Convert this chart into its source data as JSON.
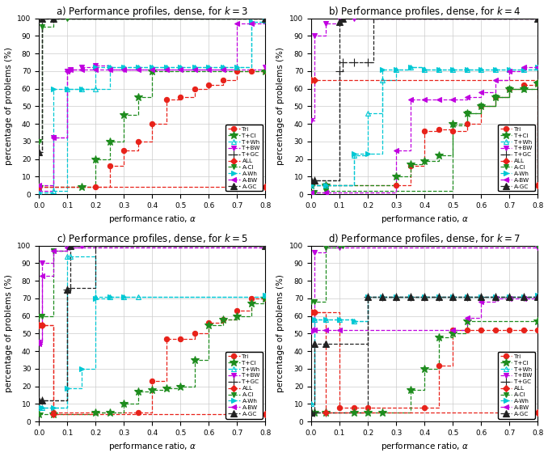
{
  "titles": [
    "a) Performance profiles, dense, for $k = 3$",
    "b) Performance profiles, dense, for $k = 4$",
    "c) Performance profiles, dense, for $k = 5$",
    "d) Performance profiles, dense, for $k = 7$"
  ],
  "panels": [
    "a",
    "b",
    "c",
    "d"
  ],
  "k_vals": [
    3,
    4,
    5,
    7
  ],
  "xlabel": "performance ratio, $\\alpha$",
  "ylabel": "percentage of problems (%)",
  "xlim": [
    0.0,
    0.8
  ],
  "ylim": [
    0,
    100
  ],
  "legend_labels": [
    "Tri",
    "T+Cl",
    "T+Wh",
    "T+BW",
    "T+GC",
    "ALL",
    "A-Cl",
    "A-Wh",
    "A-BW",
    "A-GC"
  ],
  "colors": {
    "Tri": "#e8221a",
    "T+Cl": "#1e8c1e",
    "T+Wh": "#00c8d4",
    "T+BW": "#c000e0",
    "T+GC": "#222222",
    "ALL": "#e8221a",
    "A-Cl": "#1e8c1e",
    "A-Wh": "#00c8d4",
    "A-BW": "#c000e0",
    "A-GC": "#222222"
  },
  "subplots": [
    {
      "Tri": {
        "x": [
          0.0,
          0.2,
          0.25,
          0.3,
          0.35,
          0.4,
          0.45,
          0.5,
          0.55,
          0.6,
          0.65,
          0.7,
          0.75,
          0.8
        ],
        "y": [
          4,
          4,
          16,
          25,
          30,
          40,
          54,
          55,
          60,
          62,
          65,
          70,
          70,
          70
        ]
      },
      "T+Cl": {
        "x": [
          0.0,
          0.15,
          0.2,
          0.25,
          0.3,
          0.35,
          0.4,
          0.8
        ],
        "y": [
          4,
          4,
          20,
          30,
          45,
          55,
          70,
          70
        ]
      },
      "T+Wh": {
        "x": [
          0.0,
          0.05,
          0.1,
          0.15,
          0.2,
          0.25,
          0.3,
          0.35,
          0.4,
          0.45,
          0.5,
          0.55,
          0.6,
          0.65,
          0.7,
          0.75,
          0.8
        ],
        "y": [
          1,
          2,
          60,
          60,
          60,
          72,
          72,
          72,
          72,
          72,
          72,
          72,
          72,
          72,
          72,
          98,
          99
        ]
      },
      "T+BW": {
        "x": [
          0.0,
          0.05,
          0.1,
          0.11,
          0.15,
          0.2,
          0.25,
          0.3,
          0.8
        ],
        "y": [
          2,
          32,
          70,
          71,
          72,
          73,
          71,
          71,
          72
        ]
      },
      "T+GC": {
        "x": [
          0.0,
          0.01,
          0.05,
          0.8
        ],
        "y": [
          24,
          100,
          100,
          100
        ]
      },
      "ALL": {
        "x": [
          0.0,
          0.8
        ],
        "y": [
          4,
          4
        ]
      },
      "A-Cl": {
        "x": [
          0.0,
          0.01,
          0.05,
          0.1,
          0.8
        ],
        "y": [
          30,
          95,
          100,
          100,
          100
        ]
      },
      "A-Wh": {
        "x": [
          0.0,
          0.05,
          0.1,
          0.15,
          0.2,
          0.25,
          0.3,
          0.35,
          0.4,
          0.45,
          0.5,
          0.55,
          0.6,
          0.65,
          0.7,
          0.75,
          0.8
        ],
        "y": [
          1,
          60,
          60,
          60,
          72,
          72,
          72,
          72,
          72,
          72,
          72,
          72,
          72,
          72,
          72,
          98,
          99
        ]
      },
      "A-BW": {
        "x": [
          0.0,
          0.05,
          0.1,
          0.11,
          0.15,
          0.2,
          0.25,
          0.3,
          0.35,
          0.4,
          0.45,
          0.5,
          0.55,
          0.6,
          0.65,
          0.7,
          0.75,
          0.8
        ],
        "y": [
          5,
          32,
          70,
          71,
          71,
          71,
          71,
          71,
          71,
          71,
          71,
          71,
          71,
          71,
          71,
          97,
          97,
          99
        ]
      },
      "A-GC": {
        "x": [
          0.0,
          0.01,
          0.05,
          0.8
        ],
        "y": [
          24,
          100,
          100,
          100
        ]
      }
    },
    {
      "Tri": {
        "x": [
          0.0,
          0.05,
          0.3,
          0.35,
          0.4,
          0.45,
          0.5,
          0.55,
          0.6,
          0.65,
          0.7,
          0.75,
          0.8
        ],
        "y": [
          5,
          5,
          5,
          16,
          36,
          37,
          36,
          40,
          50,
          55,
          60,
          62,
          63
        ]
      },
      "T+Cl": {
        "x": [
          0.0,
          0.05,
          0.3,
          0.35,
          0.4,
          0.45,
          0.5,
          0.55,
          0.6,
          0.65,
          0.7,
          0.75,
          0.8
        ],
        "y": [
          5,
          5,
          10,
          17,
          19,
          22,
          40,
          46,
          50,
          55,
          60,
          60,
          63
        ]
      },
      "T+Wh": {
        "x": [
          0.0,
          0.05,
          0.15,
          0.2,
          0.25,
          0.3,
          0.35,
          0.4,
          0.45,
          0.5,
          0.55,
          0.6,
          0.65,
          0.7,
          0.75,
          0.8
        ],
        "y": [
          5,
          5,
          22,
          46,
          65,
          71,
          72,
          71,
          71,
          71,
          71,
          71,
          71,
          71,
          71,
          72
        ]
      },
      "T+BW": {
        "x": [
          0.0,
          0.01,
          0.05,
          0.1,
          0.15,
          0.8
        ],
        "y": [
          42,
          90,
          97,
          100,
          100,
          100
        ]
      },
      "T+GC": {
        "x": [
          0.0,
          0.01,
          0.1,
          0.11,
          0.15,
          0.2,
          0.22,
          0.8
        ],
        "y": [
          8,
          8,
          70,
          75,
          75,
          75,
          100,
          100
        ]
      },
      "ALL": {
        "x": [
          0.0,
          0.01,
          0.8
        ],
        "y": [
          65,
          65,
          5
        ]
      },
      "A-Cl": {
        "x": [
          0.0,
          0.01,
          0.05,
          0.5,
          0.55,
          0.6,
          0.65,
          0.7,
          0.75,
          0.8
        ],
        "y": [
          1,
          1,
          2,
          39,
          46,
          50,
          55,
          60,
          60,
          63
        ]
      },
      "A-Wh": {
        "x": [
          0.0,
          0.05,
          0.15,
          0.2,
          0.25,
          0.3,
          0.35,
          0.4,
          0.45,
          0.5,
          0.55,
          0.6,
          0.65,
          0.7,
          0.75,
          0.8
        ],
        "y": [
          5,
          5,
          23,
          23,
          71,
          71,
          72,
          71,
          71,
          71,
          71,
          71,
          71,
          71,
          71,
          72
        ]
      },
      "A-BW": {
        "x": [
          0.0,
          0.05,
          0.3,
          0.35,
          0.4,
          0.45,
          0.5,
          0.55,
          0.6,
          0.65,
          0.7,
          0.75,
          0.8
        ],
        "y": [
          1,
          1,
          25,
          54,
          54,
          54,
          54,
          55,
          58,
          65,
          70,
          72,
          72
        ]
      },
      "A-GC": {
        "x": [
          0.0,
          0.01,
          0.1,
          0.11,
          0.8
        ],
        "y": [
          8,
          8,
          98,
          100,
          100
        ]
      }
    },
    {
      "Tri": {
        "x": [
          0.0,
          0.01,
          0.05,
          0.35,
          0.4,
          0.45,
          0.5,
          0.55,
          0.6,
          0.65,
          0.7,
          0.75,
          0.8
        ],
        "y": [
          55,
          55,
          5,
          5,
          23,
          47,
          47,
          50,
          56,
          58,
          63,
          70,
          70
        ]
      },
      "T+Cl": {
        "x": [
          0.0,
          0.05,
          0.2,
          0.25,
          0.3,
          0.35,
          0.4,
          0.45,
          0.5,
          0.55,
          0.6,
          0.65,
          0.7,
          0.75,
          0.8
        ],
        "y": [
          4,
          4,
          5,
          5,
          10,
          17,
          18,
          19,
          20,
          35,
          55,
          58,
          60,
          67,
          70
        ]
      },
      "T+Wh": {
        "x": [
          0.0,
          0.01,
          0.1,
          0.11,
          0.2,
          0.25,
          0.3,
          0.35,
          0.8
        ],
        "y": [
          8,
          8,
          94,
          94,
          71,
          71,
          71,
          71,
          72
        ]
      },
      "T+BW": {
        "x": [
          0.0,
          0.01,
          0.05,
          0.1,
          0.15,
          0.8
        ],
        "y": [
          45,
          90,
          97,
          99,
          100,
          100
        ]
      },
      "T+GC": {
        "x": [
          0.0,
          0.01,
          0.1,
          0.11,
          0.2,
          0.8
        ],
        "y": [
          12,
          12,
          75,
          76,
          100,
          100
        ]
      },
      "ALL": {
        "x": [
          0.0,
          0.01,
          0.05,
          0.8
        ],
        "y": [
          55,
          55,
          4,
          4
        ]
      },
      "A-Cl": {
        "x": [
          0.0,
          0.01,
          0.05,
          0.1,
          0.11,
          0.8
        ],
        "y": [
          60,
          60,
          97,
          100,
          100,
          100
        ]
      },
      "A-Wh": {
        "x": [
          0.0,
          0.01,
          0.05,
          0.1,
          0.15,
          0.2,
          0.25,
          0.3,
          0.8
        ],
        "y": [
          8,
          8,
          8,
          19,
          30,
          70,
          71,
          71,
          72
        ]
      },
      "A-BW": {
        "x": [
          0.0,
          0.01,
          0.05,
          0.1,
          0.8
        ],
        "y": [
          44,
          83,
          97,
          99,
          99
        ]
      },
      "A-GC": {
        "x": [
          0.0,
          0.01,
          0.1,
          0.11,
          0.8
        ],
        "y": [
          12,
          12,
          75,
          100,
          100
        ]
      }
    },
    {
      "Tri": {
        "x": [
          0.0,
          0.01,
          0.1,
          0.15,
          0.2,
          0.4,
          0.45,
          0.5,
          0.55,
          0.6,
          0.65,
          0.7,
          0.75,
          0.8
        ],
        "y": [
          62,
          62,
          8,
          8,
          8,
          8,
          32,
          52,
          52,
          52,
          52,
          52,
          52,
          52
        ]
      },
      "T+Cl": {
        "x": [
          0.0,
          0.01,
          0.05,
          0.15,
          0.2,
          0.25,
          0.35,
          0.4,
          0.45,
          0.5,
          0.55,
          0.8
        ],
        "y": [
          5,
          5,
          5,
          5,
          5,
          5,
          18,
          30,
          48,
          50,
          57,
          57
        ]
      },
      "T+Wh": {
        "x": [
          0.0,
          0.01,
          0.05,
          0.1,
          0.15,
          0.2,
          0.25,
          0.3,
          0.35,
          0.4,
          0.45,
          0.5,
          0.55,
          0.6,
          0.65,
          0.7,
          0.75,
          0.8
        ],
        "y": [
          10,
          58,
          58,
          58,
          57,
          71,
          71,
          71,
          71,
          71,
          71,
          71,
          71,
          71,
          71,
          71,
          71,
          72
        ]
      },
      "T+BW": {
        "x": [
          0.0,
          0.01,
          0.05,
          0.1,
          0.8
        ],
        "y": [
          51,
          96,
          99,
          99,
          99
        ]
      },
      "T+GC": {
        "x": [
          0.0,
          0.01,
          0.05,
          0.2,
          0.25,
          0.3,
          0.35,
          0.4,
          0.45,
          0.5,
          0.55,
          0.6,
          0.65,
          0.7,
          0.75,
          0.8
        ],
        "y": [
          5,
          5,
          5,
          71,
          71,
          71,
          71,
          71,
          71,
          71,
          71,
          71,
          71,
          71,
          71,
          71
        ]
      },
      "ALL": {
        "x": [
          0.0,
          0.01,
          0.05,
          0.8
        ],
        "y": [
          62,
          62,
          5,
          5
        ]
      },
      "A-Cl": {
        "x": [
          0.0,
          0.01,
          0.05,
          0.1,
          0.11,
          0.8
        ],
        "y": [
          68,
          68,
          99,
          100,
          100,
          100
        ]
      },
      "A-Wh": {
        "x": [
          0.0,
          0.01,
          0.05,
          0.1,
          0.15,
          0.2,
          0.25,
          0.3,
          0.35,
          0.4,
          0.45,
          0.5,
          0.55,
          0.6,
          0.65,
          0.7,
          0.75,
          0.8
        ],
        "y": [
          10,
          58,
          58,
          58,
          57,
          71,
          71,
          71,
          71,
          71,
          71,
          71,
          71,
          71,
          71,
          71,
          71,
          72
        ]
      },
      "A-BW": {
        "x": [
          0.0,
          0.01,
          0.05,
          0.1,
          0.5,
          0.55,
          0.6,
          0.65,
          0.7,
          0.75,
          0.8
        ],
        "y": [
          52,
          52,
          52,
          52,
          52,
          59,
          68,
          70,
          70,
          70,
          71
        ]
      },
      "A-GC": {
        "x": [
          0.0,
          0.01,
          0.05,
          0.2,
          0.25,
          0.3,
          0.35,
          0.4,
          0.45,
          0.5,
          0.55,
          0.6,
          0.65,
          0.7,
          0.75,
          0.8
        ],
        "y": [
          5,
          44,
          44,
          71,
          71,
          71,
          71,
          71,
          71,
          71,
          71,
          71,
          71,
          71,
          71,
          71
        ]
      }
    }
  ]
}
